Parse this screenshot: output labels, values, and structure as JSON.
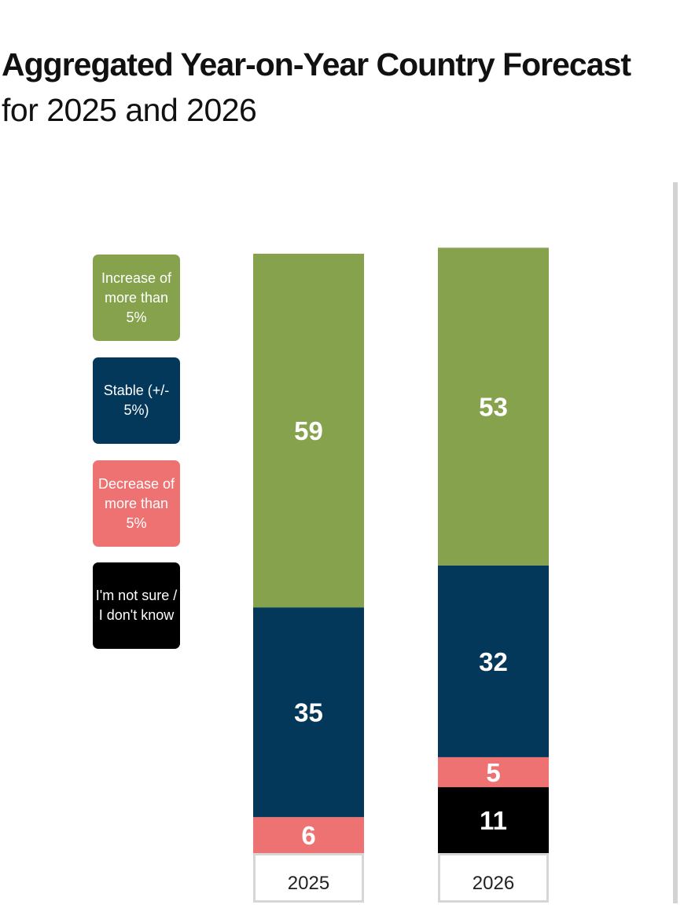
{
  "header": {
    "title": "Aggregated Year-on-Year Country Forecast",
    "subtitle": "for 2025 and 2026"
  },
  "legend": [
    {
      "label": "Increase of more than 5%",
      "color": "#86a24c"
    },
    {
      "label": "Stable (+/- 5%)",
      "color": "#04385a"
    },
    {
      "label": "Decrease of more than 5%",
      "color": "#ef7273"
    },
    {
      "label": "I'm not sure / I don't know",
      "color": "#000000"
    }
  ],
  "chart_data": {
    "type": "bar",
    "stacked": true,
    "categories": [
      "2025",
      "2026"
    ],
    "series": [
      {
        "name": "Increase of more than 5%",
        "color": "#86a24c",
        "values": [
          59,
          53
        ]
      },
      {
        "name": "Stable (+/- 5%)",
        "color": "#04385a",
        "values": [
          35,
          32
        ]
      },
      {
        "name": "Decrease of more than 5%",
        "color": "#ef7273",
        "values": [
          6,
          5
        ]
      },
      {
        "name": "I'm not sure / I don't know",
        "color": "#000000",
        "values": [
          0,
          11
        ]
      }
    ],
    "ylim": [
      0,
      100
    ],
    "legend_position": "left",
    "grid": false,
    "data_labels": true
  }
}
